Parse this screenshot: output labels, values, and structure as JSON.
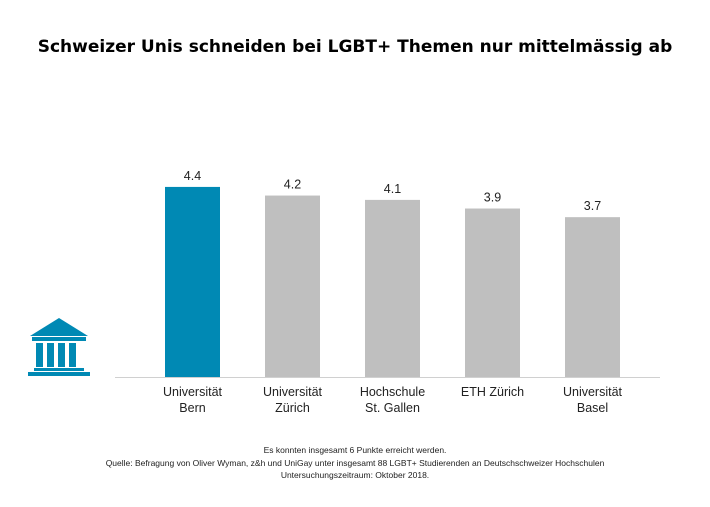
{
  "chart_data": {
    "type": "bar",
    "title": "Schweizer Unis schneiden bei LGBT+ Themen nur mittelmässig ab",
    "categories": [
      [
        "Universität",
        "Bern"
      ],
      [
        "Universität",
        "Zürich"
      ],
      [
        "Hochschule",
        "St. Gallen"
      ],
      [
        "ETH Zürich"
      ],
      [
        "Universität",
        "Basel"
      ]
    ],
    "values": [
      4.4,
      4.2,
      4.1,
      3.9,
      3.7
    ],
    "value_labels": [
      "4.4",
      "4.2",
      "4.1",
      "3.9",
      "3.7"
    ],
    "highlight_index": 0,
    "xlabel": "",
    "ylabel": "",
    "ylim": [
      0,
      6
    ],
    "grid": false
  },
  "colors": {
    "highlight": "#0089b4",
    "bar": "#bfbfbf",
    "axis": "#d0d0d0",
    "icon": "#0089b4"
  },
  "icon": "university-building-icon",
  "notes": [
    "Es konnten insgesamt 6 Punkte erreicht werden.",
    "Quelle: Befragung von Oliver Wyman, z&h und UniGay unter insgesamt 88 LGBT+ Studierenden an Deutschschweizer Hochschulen",
    "Untersuchungszeitraum: Oktober 2018."
  ]
}
